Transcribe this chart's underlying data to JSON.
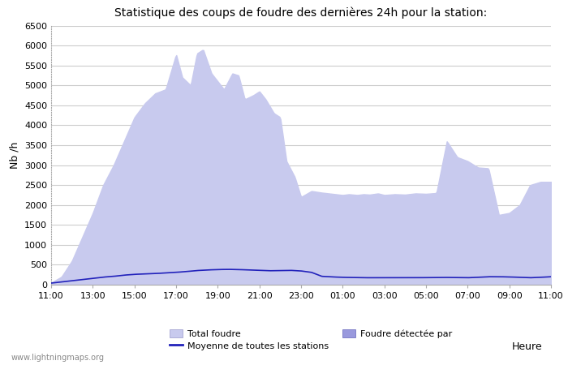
{
  "title": "Statistique des coups de foudre des dernières 24h pour la station:",
  "xlabel": "Heure",
  "ylabel": "Nb /h",
  "xlim": [
    0,
    24
  ],
  "ylim": [
    0,
    6500
  ],
  "yticks": [
    0,
    500,
    1000,
    1500,
    2000,
    2500,
    3000,
    3500,
    4000,
    4500,
    5000,
    5500,
    6000,
    6500
  ],
  "x_labels": [
    "11:00",
    "13:00",
    "15:00",
    "17:00",
    "19:00",
    "21:00",
    "23:00",
    "01:00",
    "03:00",
    "05:00",
    "07:00",
    "09:00",
    "11:00"
  ],
  "fill_color_light": "#c8caee",
  "fill_color_detected": "#9999dd",
  "line_color": "#2222bb",
  "background_color": "#ffffff",
  "grid_color": "#cccccc",
  "watermark": "www.lightningmaps.org",
  "legend_total": "Total foudre",
  "legend_detected": "Foudre détectée par",
  "legend_moyenne": "Moyenne de toutes les stations",
  "total_kx": [
    0,
    0.5,
    1.0,
    1.5,
    2.0,
    2.5,
    3.0,
    3.5,
    4.0,
    4.5,
    5.0,
    5.5,
    6.0,
    6.3,
    6.7,
    7.0,
    7.3,
    7.7,
    8.0,
    8.3,
    8.7,
    9.0,
    9.3,
    9.7,
    10.0,
    10.3,
    10.7,
    11.0,
    11.3,
    11.7,
    12.0,
    12.5,
    13.0,
    13.5,
    14.0,
    14.3,
    14.7,
    15.0,
    15.3,
    15.7,
    16.0,
    16.5,
    17.0,
    17.5,
    18.0,
    18.5,
    19.0,
    19.5,
    20.0,
    20.5,
    21.0,
    21.5,
    22.0,
    22.5,
    23.0,
    23.5,
    24.0
  ],
  "total_ky": [
    50,
    200,
    600,
    1200,
    1800,
    2500,
    3000,
    3600,
    4200,
    4550,
    4800,
    4900,
    5780,
    5200,
    5000,
    5800,
    5900,
    5300,
    5100,
    4900,
    5300,
    5250,
    4650,
    4750,
    4850,
    4650,
    4300,
    4200,
    3100,
    2700,
    2200,
    2350,
    2310,
    2280,
    2250,
    2270,
    2250,
    2270,
    2260,
    2290,
    2250,
    2270,
    2260,
    2290,
    2280,
    2300,
    3600,
    3200,
    3100,
    2940,
    2920,
    1750,
    1800,
    2000,
    2500,
    2580,
    2580
  ],
  "moyenne_kx": [
    0,
    0.5,
    1.0,
    1.5,
    2.0,
    2.5,
    3.0,
    3.5,
    4.0,
    4.5,
    5.0,
    5.5,
    6.0,
    6.5,
    7.0,
    7.5,
    8.0,
    8.5,
    9.0,
    9.5,
    10.0,
    10.5,
    11.0,
    11.5,
    12.0,
    12.5,
    13.0,
    13.5,
    14.0,
    14.5,
    15.0,
    15.5,
    16.0,
    16.5,
    17.0,
    17.5,
    18.0,
    18.5,
    19.0,
    19.5,
    20.0,
    20.5,
    21.0,
    21.5,
    22.0,
    22.5,
    23.0,
    23.5,
    24.0
  ],
  "moyenne_ky": [
    40,
    70,
    100,
    130,
    160,
    190,
    210,
    240,
    260,
    270,
    280,
    295,
    310,
    330,
    355,
    370,
    380,
    385,
    380,
    370,
    360,
    350,
    355,
    360,
    345,
    310,
    210,
    195,
    185,
    180,
    175,
    175,
    173,
    173,
    173,
    175,
    178,
    180,
    182,
    178,
    175,
    185,
    200,
    200,
    195,
    185,
    175,
    185,
    200
  ]
}
